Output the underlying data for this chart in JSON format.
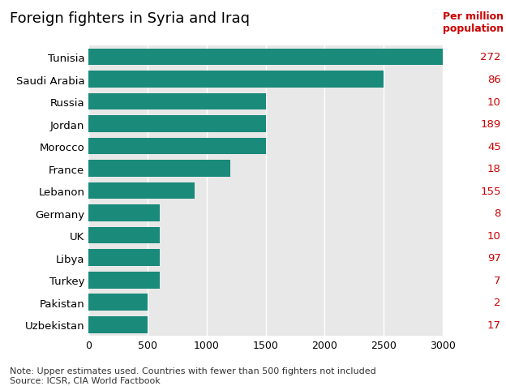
{
  "title": "Foreign fighters in Syria and Iraq",
  "annotation_label": "Per million\npopulation",
  "annotation_color": "#cc0000",
  "bar_color": "#1a8a7a",
  "background_color": "#e8e8e8",
  "countries": [
    "Tunisia",
    "Saudi Arabia",
    "Russia",
    "Jordan",
    "Morocco",
    "France",
    "Lebanon",
    "Germany",
    "UK",
    "Libya",
    "Turkey",
    "Pakistan",
    "Uzbekistan"
  ],
  "values": [
    3000,
    2500,
    1500,
    1500,
    1500,
    1200,
    900,
    600,
    600,
    600,
    600,
    500,
    500
  ],
  "per_million": [
    272,
    86,
    10,
    189,
    45,
    18,
    155,
    8,
    10,
    97,
    7,
    2,
    17
  ],
  "xlim": [
    0,
    3000
  ],
  "xticks": [
    0,
    500,
    1000,
    1500,
    2000,
    2500,
    3000
  ],
  "note": "Note: Upper estimates used. Countries with fewer than 500 fighters not included",
  "source": "Source: ICSR, CIA World Factbook",
  "title_fontsize": 13,
  "label_fontsize": 9.5,
  "tick_fontsize": 9,
  "note_fontsize": 8,
  "per_million_fontsize": 9.5,
  "header_fontsize": 9
}
